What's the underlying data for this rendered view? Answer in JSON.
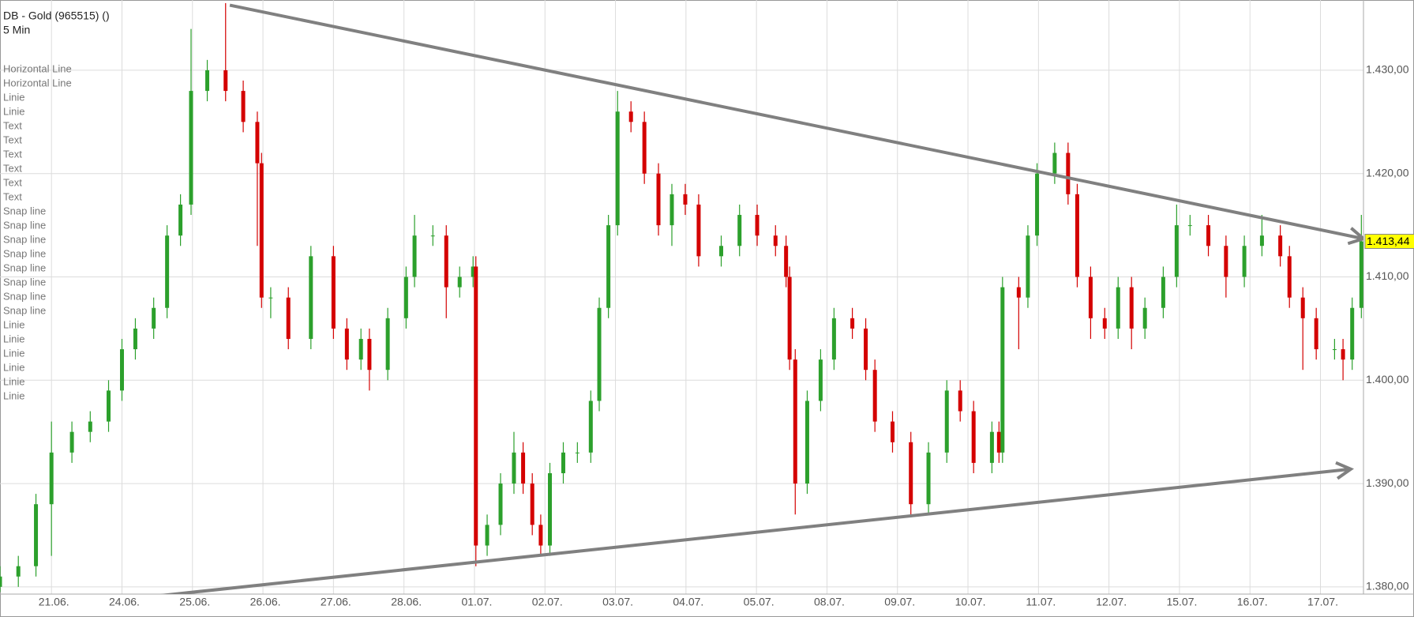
{
  "chart_data": {
    "type": "candlestick",
    "title": "DB - Gold (965515) ()",
    "subtitle": "5 Min",
    "drawing_objects": [
      "Horizontal Line",
      "Horizontal Line",
      "Linie",
      "Linie",
      "Text",
      "Text",
      "Text",
      "Text",
      "Text",
      "Text",
      "Snap line",
      "Snap line",
      "Snap line",
      "Snap line",
      "Snap line",
      "Snap line",
      "Snap line",
      "Snap line",
      "Linie",
      "Linie",
      "Linie",
      "Linie",
      "Linie",
      "Linie"
    ],
    "xlim": [
      -0.73,
      18.61
    ],
    "ylim": [
      1379.3,
      1436.8
    ],
    "xticks": [
      {
        "value": 0,
        "label": "21.06."
      },
      {
        "value": 1,
        "label": "24.06."
      },
      {
        "value": 2,
        "label": "25.06."
      },
      {
        "value": 3,
        "label": "26.06."
      },
      {
        "value": 4,
        "label": "27.06."
      },
      {
        "value": 5,
        "label": "28.06."
      },
      {
        "value": 6,
        "label": "01.07."
      },
      {
        "value": 7,
        "label": "02.07."
      },
      {
        "value": 8,
        "label": "03.07."
      },
      {
        "value": 9,
        "label": "04.07."
      },
      {
        "value": 10,
        "label": "05.07."
      },
      {
        "value": 11,
        "label": "08.07."
      },
      {
        "value": 12,
        "label": "09.07."
      },
      {
        "value": 13,
        "label": "10.07."
      },
      {
        "value": 14,
        "label": "11.07."
      },
      {
        "value": 15,
        "label": "12.07."
      },
      {
        "value": 16,
        "label": "15.07."
      },
      {
        "value": 17,
        "label": "16.07."
      },
      {
        "value": 18,
        "label": "17.07."
      }
    ],
    "yticks": [
      {
        "value": 1380,
        "label": "1.380,00"
      },
      {
        "value": 1390,
        "label": "1.390,00"
      },
      {
        "value": 1400,
        "label": "1.400,00"
      },
      {
        "value": 1410,
        "label": "1.410,00"
      },
      {
        "value": 1420,
        "label": "1.420,00"
      },
      {
        "value": 1430,
        "label": "1.430,00"
      }
    ],
    "grid": true,
    "up_color": "#2ca02c",
    "down_color": "#d40000",
    "x": [
      -0.73,
      -0.47,
      -0.22,
      0,
      0.29,
      0.55,
      0.81,
      1.0,
      1.19,
      1.45,
      1.64,
      1.83,
      1.98,
      2.21,
      2.47,
      2.72,
      2.92,
      2.98,
      3.11,
      3.36,
      3.68,
      4.0,
      4.19,
      4.39,
      4.51,
      4.77,
      5.03,
      5.15,
      5.41,
      5.6,
      5.79,
      5.98,
      6.02,
      6.18,
      6.37,
      6.56,
      6.69,
      6.82,
      6.94,
      7.07,
      7.26,
      7.46,
      7.65,
      7.77,
      7.9,
      8.03,
      8.22,
      8.41,
      8.61,
      8.8,
      8.99,
      9.18,
      9.5,
      9.76,
      10.01,
      10.27,
      10.42,
      10.47,
      10.55,
      10.72,
      10.91,
      11.1,
      11.36,
      11.55,
      11.68,
      11.93,
      12.19,
      12.44,
      12.7,
      12.89,
      13.08,
      13.34,
      13.44,
      13.49,
      13.72,
      13.85,
      13.98,
      14.23,
      14.42,
      14.55,
      14.74,
      14.94,
      15.13,
      15.32,
      15.51,
      15.77,
      15.96,
      16.15,
      16.41,
      16.66,
      16.92,
      17.17,
      17.43,
      17.56,
      17.75,
      17.94,
      18.2,
      18.32,
      18.45,
      18.58
    ],
    "open": [
      1380,
      1381,
      1382,
      1388,
      1393,
      1395,
      1396,
      1399,
      1403,
      1405,
      1407,
      1414,
      1417,
      1428,
      1430,
      1428,
      1425,
      1421,
      1408,
      1408,
      1404,
      1412,
      1405,
      1402,
      1404,
      1401,
      1406,
      1410,
      1414,
      1414,
      1409,
      1410,
      1411,
      1384,
      1386,
      1390,
      1393,
      1390,
      1386,
      1384,
      1391,
      1393,
      1393,
      1398,
      1407,
      1415,
      1426,
      1425,
      1420,
      1415,
      1418,
      1417,
      1412,
      1413,
      1416,
      1414,
      1413,
      1410,
      1402,
      1390,
      1398,
      1402,
      1406,
      1405,
      1401,
      1396,
      1394,
      1388,
      1393,
      1399,
      1397,
      1392,
      1395,
      1393,
      1409,
      1408,
      1414,
      1420,
      1422,
      1418,
      1410,
      1406,
      1405,
      1409,
      1405,
      1407,
      1410,
      1415,
      1415,
      1413,
      1410,
      1413,
      1414,
      1412,
      1408,
      1406,
      1403,
      1403,
      1402,
      1407
    ],
    "high": [
      1382,
      1383,
      1389,
      1396,
      1396,
      1397,
      1400,
      1404,
      1406,
      1408,
      1415,
      1418,
      1434,
      1431,
      1436.5,
      1429,
      1426,
      1422,
      1409,
      1409,
      1413,
      1413,
      1406,
      1405,
      1405,
      1407,
      1411,
      1416,
      1415,
      1415,
      1411,
      1412,
      1412,
      1387,
      1391,
      1395,
      1394,
      1391,
      1387,
      1392,
      1394,
      1394,
      1399,
      1408,
      1416,
      1428,
      1427,
      1426,
      1421,
      1419,
      1419,
      1418,
      1414,
      1417,
      1417,
      1415,
      1414,
      1411,
      1403,
      1399,
      1403,
      1407,
      1407,
      1406,
      1402,
      1397,
      1395,
      1394,
      1400,
      1400,
      1398,
      1396,
      1396,
      1410,
      1410,
      1415,
      1421,
      1423,
      1423,
      1419,
      1411,
      1407,
      1410,
      1410,
      1408,
      1411,
      1417,
      1416,
      1416,
      1414,
      1414,
      1416,
      1415,
      1413,
      1409,
      1407,
      1404,
      1404,
      1408,
      1416
    ],
    "low": [
      1379.5,
      1380,
      1381,
      1383,
      1392,
      1394,
      1395,
      1398,
      1402,
      1404,
      1406,
      1413,
      1416,
      1427,
      1427,
      1424,
      1413,
      1407,
      1406,
      1403,
      1403,
      1404,
      1401,
      1401,
      1399,
      1400,
      1405,
      1409,
      1413,
      1406,
      1408,
      1409,
      1382,
      1383,
      1385,
      1389,
      1389,
      1385,
      1383,
      1383,
      1390,
      1392,
      1392,
      1397,
      1406,
      1414,
      1424,
      1419,
      1414,
      1413,
      1416,
      1411,
      1411,
      1412,
      1413,
      1412,
      1409,
      1401,
      1387,
      1389,
      1397,
      1401,
      1404,
      1400,
      1395,
      1393,
      1387,
      1387,
      1392,
      1396,
      1391,
      1391,
      1392,
      1392,
      1403,
      1407,
      1413,
      1419,
      1417,
      1409,
      1404,
      1404,
      1404,
      1403,
      1404,
      1406,
      1409,
      1414,
      1412,
      1408,
      1409,
      1412,
      1411,
      1407,
      1401,
      1402,
      1402,
      1400,
      1401,
      1406
    ],
    "close": [
      1381,
      1382,
      1388,
      1393,
      1395,
      1396,
      1399,
      1403,
      1405,
      1407,
      1414,
      1417,
      1428,
      1430,
      1428,
      1425,
      1421,
      1408,
      1408,
      1404,
      1412,
      1405,
      1402,
      1404,
      1401,
      1406,
      1410,
      1414,
      1414,
      1409,
      1410,
      1411,
      1384,
      1386,
      1390,
      1393,
      1390,
      1386,
      1384,
      1391,
      1393,
      1393,
      1398,
      1407,
      1415,
      1426,
      1425,
      1420,
      1415,
      1418,
      1417,
      1412,
      1413,
      1416,
      1414,
      1413,
      1410,
      1402,
      1390,
      1398,
      1402,
      1406,
      1405,
      1401,
      1396,
      1394,
      1388,
      1393,
      1399,
      1397,
      1392,
      1395,
      1393,
      1409,
      1408,
      1414,
      1420,
      1422,
      1418,
      1410,
      1406,
      1405,
      1409,
      1405,
      1407,
      1410,
      1415,
      1415,
      1413,
      1410,
      1413,
      1414,
      1412,
      1408,
      1406,
      1403,
      1403,
      1402,
      1407,
      1413.44
    ],
    "trend_lines": [
      {
        "color": "#808080",
        "x": [
          2.53,
          18.61
        ],
        "y": [
          1436.3,
          1413.7
        ]
      },
      {
        "color": "#808080",
        "x": [
          -0.73,
          18.43
        ],
        "y": [
          1377.5,
          1391.4
        ]
      }
    ],
    "last_price": {
      "value": 1413.44,
      "label": "1.413,44",
      "color": "#ffff00"
    }
  }
}
